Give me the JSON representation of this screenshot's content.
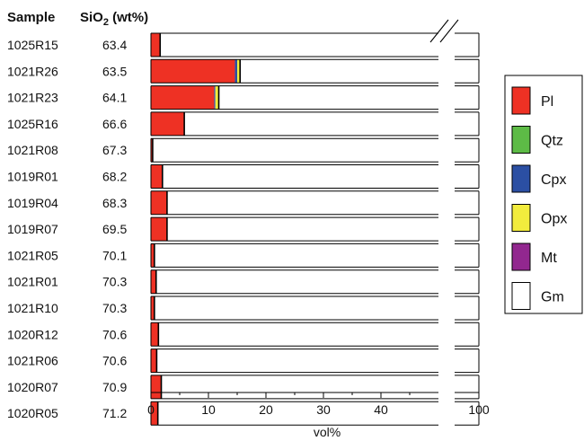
{
  "chart_data": {
    "type": "bar",
    "orientation": "horizontal",
    "stacked": true,
    "header_sample": "Sample",
    "header_sio2_main": "SiO",
    "header_sio2_sub": "2",
    "header_sio2_unit": " (wt%)",
    "xlabel": "vol%",
    "xlim": [
      0,
      100
    ],
    "x_axis_break": {
      "from": 50,
      "to": 95
    },
    "xticks": [
      0,
      10,
      20,
      30,
      40,
      100
    ],
    "grid": false,
    "legend_position": "right",
    "samples": [
      "1025R15",
      "1021R26",
      "1021R23",
      "1025R16",
      "1021R08",
      "1019R01",
      "1019R04",
      "1019R07",
      "1021R05",
      "1021R01",
      "1021R10",
      "1020R12",
      "1021R06",
      "1020R07",
      "1020R05"
    ],
    "sio2": [
      "63.4",
      "63.5",
      "64.1",
      "66.6",
      "67.3",
      "68.2",
      "68.3",
      "69.5",
      "70.1",
      "70.3",
      "70.3",
      "70.6",
      "70.6",
      "70.9",
      "71.2"
    ],
    "series": [
      {
        "name": "Pl",
        "color": "#ee3124",
        "values": [
          1.6,
          14.6,
          11.0,
          5.8,
          0.3,
          2.0,
          2.8,
          2.8,
          0.6,
          0.9,
          0.6,
          1.3,
          1.0,
          1.8,
          1.2
        ]
      },
      {
        "name": "Qtz",
        "color": "#5dbb46",
        "values": [
          0,
          0,
          0,
          0,
          0,
          0,
          0,
          0,
          0,
          0,
          0,
          0,
          0,
          0,
          0
        ]
      },
      {
        "name": "Cpx",
        "color": "#2b4fa3",
        "values": [
          0,
          0.4,
          0.2,
          0,
          0,
          0,
          0,
          0,
          0,
          0,
          0,
          0,
          0,
          0,
          0
        ]
      },
      {
        "name": "Opx",
        "color": "#f2ec3d",
        "values": [
          0,
          0.5,
          0.6,
          0,
          0,
          0,
          0,
          0,
          0,
          0,
          0,
          0,
          0,
          0,
          0
        ]
      },
      {
        "name": "Mt",
        "color": "#92278f",
        "values": [
          0,
          0,
          0,
          0,
          0,
          0,
          0,
          0,
          0,
          0,
          0,
          0,
          0,
          0,
          0
        ]
      },
      {
        "name": "Gm",
        "color": "#ffffff",
        "values": [
          98.4,
          84.5,
          88.2,
          94.2,
          99.7,
          98.0,
          97.2,
          97.2,
          99.4,
          99.1,
          99.4,
          98.7,
          99.0,
          98.2,
          98.8
        ]
      }
    ]
  }
}
